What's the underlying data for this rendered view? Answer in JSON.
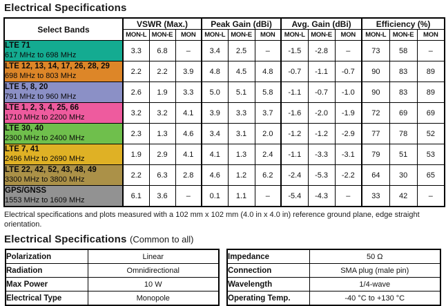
{
  "page": {
    "title1": "Electrical Specifications",
    "note": "Electrical specifications and plots measured with a 102 mm x 102 mm (4.0 in x 4.0 in) reference ground plane, edge straight orientation.",
    "title2_main": "Electrical Specifications",
    "title2_suffix": "(Common to all)"
  },
  "spec_table": {
    "corner_header": "Select Bands",
    "groups": [
      {
        "label": "VSWR (Max.)",
        "subcols": [
          "MON-L",
          "MON-E",
          "MON"
        ]
      },
      {
        "label": "Peak Gain (dBi)",
        "subcols": [
          "MON-L",
          "MON-E",
          "MON"
        ]
      },
      {
        "label": "Avg. Gain (dBi)",
        "subcols": [
          "MON-L",
          "MON-E",
          "MON"
        ]
      },
      {
        "label": "Efficiency (%)",
        "subcols": [
          "MON-L",
          "MON-E",
          "MON"
        ]
      }
    ],
    "rows": [
      {
        "band": "LTE 71",
        "range": "617 MHz to 698 MHz",
        "color": "#14ab91",
        "values": [
          "3.3",
          "6.8",
          "–",
          "3.4",
          "2.5",
          "–",
          "-1.5",
          "-2.8",
          "–",
          "73",
          "58",
          "–"
        ]
      },
      {
        "band": "LTE 12, 13, 14, 17, 26, 28, 29",
        "range": "698 MHz to 803 MHz",
        "color": "#dd8628",
        "values": [
          "2.2",
          "2.2",
          "3.9",
          "4.8",
          "4.5",
          "4.8",
          "-0.7",
          "-1.1",
          "-0.7",
          "90",
          "83",
          "89"
        ]
      },
      {
        "band": "LTE 5, 8, 20",
        "range": "791 MHz to 960 MHz",
        "color": "#8b90c6",
        "values": [
          "2.6",
          "1.9",
          "3.3",
          "5.0",
          "5.1",
          "5.8",
          "-1.1",
          "-0.7",
          "-1.0",
          "90",
          "83",
          "89"
        ]
      },
      {
        "band": "LTE 1, 2, 3, 4, 25, 66",
        "range": "1710 MHz to 2200 MHz",
        "color": "#ee5b9e",
        "values": [
          "3.2",
          "3.2",
          "4.1",
          "3.9",
          "3.3",
          "3.7",
          "-1.6",
          "-2.0",
          "-1.9",
          "72",
          "69",
          "69"
        ]
      },
      {
        "band": "LTE 30, 40",
        "range": "2300 MHz to 2400 MHz",
        "color": "#6fbf4c",
        "values": [
          "2.3",
          "1.3",
          "4.6",
          "3.4",
          "3.1",
          "2.0",
          "-1.2",
          "-1.2",
          "-2.9",
          "77",
          "78",
          "52"
        ]
      },
      {
        "band": "LTE 7, 41",
        "range": "2496 MHz to 2690 MHz",
        "color": "#dfb125",
        "values": [
          "1.9",
          "2.9",
          "4.1",
          "4.1",
          "1.3",
          "2.4",
          "-1.1",
          "-3.3",
          "-3.1",
          "79",
          "51",
          "53"
        ]
      },
      {
        "band": "LTE 22, 42, 52, 43, 48, 49",
        "range": "3300 MHz to 3800 MHz",
        "color": "#ab9148",
        "values": [
          "2.2",
          "6.3",
          "2.8",
          "4.6",
          "1.2",
          "6.2",
          "-2.4",
          "-5.3",
          "-2.2",
          "64",
          "30",
          "65"
        ]
      },
      {
        "band": "GPS/GNSS",
        "range": "1553 MHz to 1609 MHz",
        "color": "#929292",
        "values": [
          "6.1",
          "3.6",
          "–",
          "0.1",
          "1.1",
          "–",
          "-5.4",
          "-4.3",
          "–",
          "33",
          "42",
          "–"
        ]
      }
    ]
  },
  "common_specs": {
    "left": [
      {
        "label": "Polarization",
        "value": "Linear"
      },
      {
        "label": "Radiation",
        "value": "Omnidirectional"
      },
      {
        "label": "Max Power",
        "value": "10 W"
      },
      {
        "label": "Electrical Type",
        "value": "Monopole"
      }
    ],
    "right": [
      {
        "label": "Impedance",
        "value": "50 Ω"
      },
      {
        "label": "Connection",
        "value": "SMA plug (male pin)"
      },
      {
        "label": "Wavelength",
        "value": "1/4-wave"
      },
      {
        "label": "Operating Temp.",
        "value": "-40 °C to +130 °C"
      }
    ]
  }
}
